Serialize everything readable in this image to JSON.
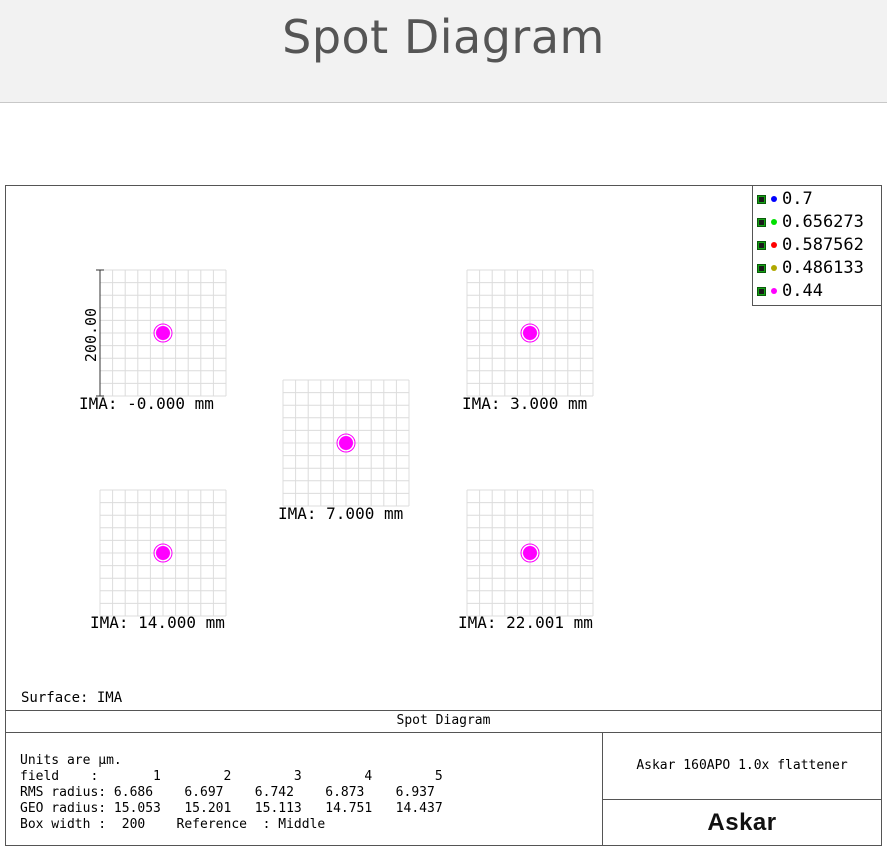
{
  "header": {
    "title": "Spot Diagram"
  },
  "legend": {
    "items": [
      {
        "label": "0.7",
        "color": "#0000ff"
      },
      {
        "label": "0.656273",
        "color": "#00e000"
      },
      {
        "label": "0.587562",
        "color": "#ff0000"
      },
      {
        "label": "0.486133",
        "color": "#b0a800"
      },
      {
        "label": "0.44",
        "color": "#ff00ff"
      }
    ]
  },
  "chart_data": {
    "type": "scatter",
    "box_width_um": 200,
    "scale_bar_label": "200.00",
    "spot_color": "#ff00ff",
    "fields": [
      {
        "label": "IMA: -0.000 mm"
      },
      {
        "label": "IMA: 3.000 mm"
      },
      {
        "label": "IMA: 7.000 mm"
      },
      {
        "label": "IMA: 14.000 mm"
      },
      {
        "label": "IMA: 22.001 mm"
      }
    ]
  },
  "surface": {
    "label": "Surface: IMA"
  },
  "footer": {
    "title": "Spot Diagram",
    "lines": [
      "Units are µm.",
      "field    :       1        2        3        4        5",
      "RMS radius: 6.686    6.697    6.742    6.873    6.937",
      "GEO radius: 15.053   15.201   15.113   14.751   14.437",
      "Box width :  200    Reference  : Middle"
    ],
    "lens_name": "Askar 160APO 1.0x flattener",
    "logo_text": "Askar"
  }
}
